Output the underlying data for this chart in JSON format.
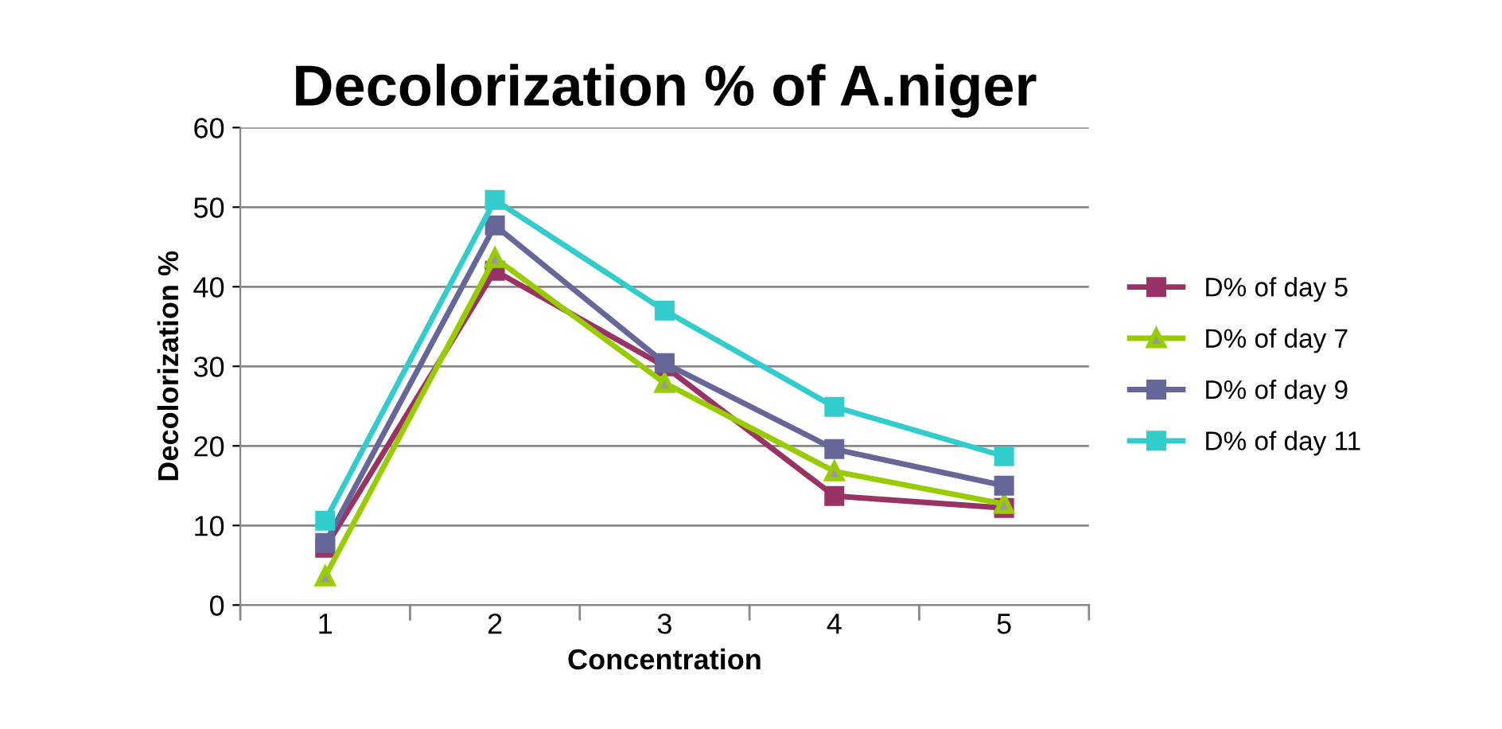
{
  "chart_data": {
    "type": "line",
    "title": "Decolorization % of A.niger",
    "xlabel": "Concentration",
    "ylabel": "Decolorization %",
    "categories": [
      "1",
      "2",
      "3",
      "4",
      "5"
    ],
    "series": [
      {
        "name": "D% of day 5",
        "color": "#993366",
        "marker": "square",
        "values": [
          7.2,
          42,
          30,
          13.7,
          12.2
        ]
      },
      {
        "name": "D% of day 7",
        "color": "#99cc00",
        "marker": "triangle",
        "values": [
          3.6,
          43.6,
          27.9,
          16.8,
          12.7
        ]
      },
      {
        "name": "D% of day 9",
        "color": "#666699",
        "marker": "square",
        "values": [
          7.8,
          47.7,
          30.4,
          19.6,
          15.0
        ]
      },
      {
        "name": "D% of day 11",
        "color": "#33cccc",
        "marker": "square",
        "values": [
          10.6,
          50.9,
          37.0,
          24.9,
          18.7
        ]
      }
    ],
    "ylim": [
      0,
      60
    ],
    "yticks": [
      0,
      10,
      20,
      30,
      40,
      50,
      60
    ],
    "grid": "y",
    "legend": "right",
    "line_style": "solid"
  }
}
